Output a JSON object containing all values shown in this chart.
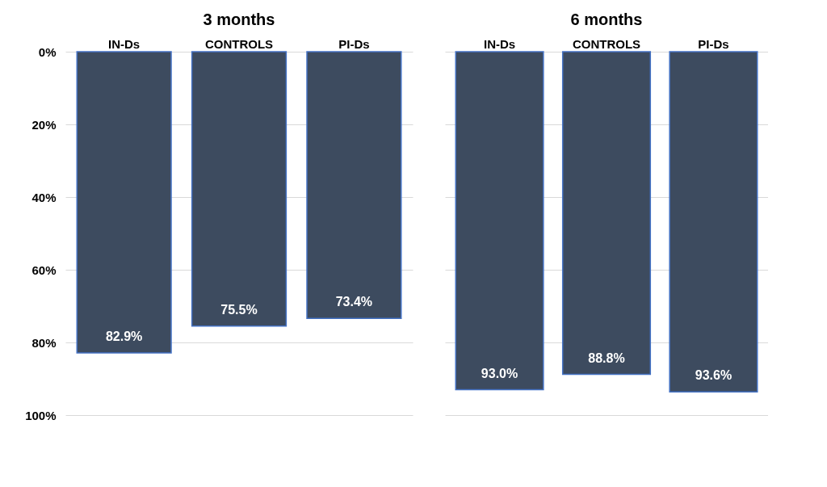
{
  "chart_data": [
    {
      "type": "bar",
      "title": "3 months",
      "categories": [
        "IN-Ds",
        "CONTROLS",
        "PI-Ds"
      ],
      "values": [
        82.9,
        75.5,
        73.4
      ],
      "color": "#3d4b5f",
      "value_labels": [
        "82.9%",
        "75.5%",
        "73.4%"
      ],
      "ylim": [
        100,
        0
      ],
      "yticks": [
        {
          "value": 0,
          "label": "0%"
        },
        {
          "value": 20,
          "label": "20%"
        },
        {
          "value": 40,
          "label": "40%"
        },
        {
          "value": 60,
          "label": "60%"
        },
        {
          "value": 80,
          "label": "80%"
        },
        {
          "value": 100,
          "label": "100%"
        }
      ],
      "grid": "y"
    },
    {
      "type": "bar",
      "title": "6 months",
      "categories": [
        "IN-Ds",
        "CONTROLS",
        "PI-Ds"
      ],
      "values": [
        93.0,
        88.8,
        93.6
      ],
      "color": "#3d4b5f",
      "value_labels": [
        "93.0%",
        "88.8%",
        "93.6%"
      ],
      "ylim": [
        100,
        0
      ],
      "yticks": [
        {
          "value": 0,
          "label": null
        },
        {
          "value": 20,
          "label": null
        },
        {
          "value": 40,
          "label": null
        },
        {
          "value": 60,
          "label": null
        },
        {
          "value": 80,
          "label": null
        },
        {
          "value": 100,
          "label": null
        }
      ],
      "grid": "y",
      "tick_labels": "x"
    }
  ]
}
